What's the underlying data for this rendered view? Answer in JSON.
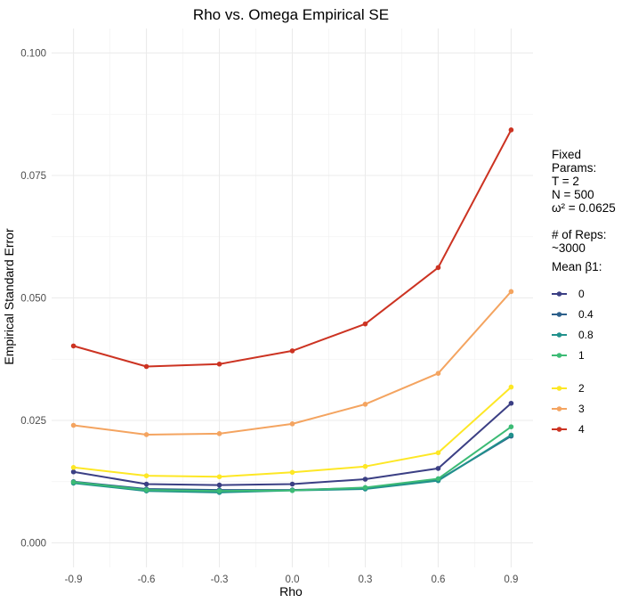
{
  "chart_data": {
    "type": "line",
    "title": "Rho vs. Omega Empirical SE",
    "xlabel": "Rho",
    "ylabel": "Empirical Standard Error",
    "x": [
      -0.9,
      -0.6,
      -0.3,
      0.0,
      0.3,
      0.6,
      0.9
    ],
    "x_tick_labels": [
      "-0.9",
      "-0.6",
      "-0.3",
      "0.0",
      "0.3",
      "0.6",
      "0.9"
    ],
    "xlim": [
      -0.99,
      0.99
    ],
    "ylim": [
      -0.005,
      0.105
    ],
    "y_ticks": [
      0.0,
      0.025,
      0.05,
      0.075,
      0.1
    ],
    "y_tick_labels": [
      "0.000",
      "0.025",
      "0.050",
      "0.075",
      "0.100"
    ],
    "grid": true,
    "legend_position": "right",
    "series": [
      {
        "name": "0",
        "color": "#3b3f84",
        "values": [
          0.0145,
          0.012,
          0.0118,
          0.012,
          0.013,
          0.0152,
          0.0285
        ]
      },
      {
        "name": "0.4",
        "color": "#2c5f8a",
        "values": [
          0.0125,
          0.011,
          0.0108,
          0.0108,
          0.0112,
          0.0128,
          0.0218
        ]
      },
      {
        "name": "0.8",
        "color": "#21918c",
        "values": [
          0.0122,
          0.0106,
          0.0103,
          0.0107,
          0.011,
          0.0127,
          0.022
        ]
      },
      {
        "name": "1",
        "color": "#3cbb75",
        "values": [
          0.0124,
          0.0108,
          0.0106,
          0.0107,
          0.0113,
          0.0131,
          0.0237
        ]
      },
      {
        "name": "2",
        "color": "#fde725",
        "values": [
          0.0154,
          0.0137,
          0.0135,
          0.0144,
          0.0156,
          0.0184,
          0.0318
        ]
      },
      {
        "name": "3",
        "color": "#f4a460",
        "values": [
          0.024,
          0.0221,
          0.0223,
          0.0243,
          0.0283,
          0.0346,
          0.0513
        ]
      },
      {
        "name": "4",
        "color": "#cc3322",
        "values": [
          0.0402,
          0.036,
          0.0365,
          0.0392,
          0.0447,
          0.0562,
          0.0843
        ]
      }
    ]
  },
  "legend": {
    "notes": [
      "Fixed",
      "Params:",
      "T = 2",
      "N = 500",
      "ω² = 0.0625",
      "",
      "# of Reps:",
      "~3000"
    ],
    "title": "Mean β1:"
  }
}
